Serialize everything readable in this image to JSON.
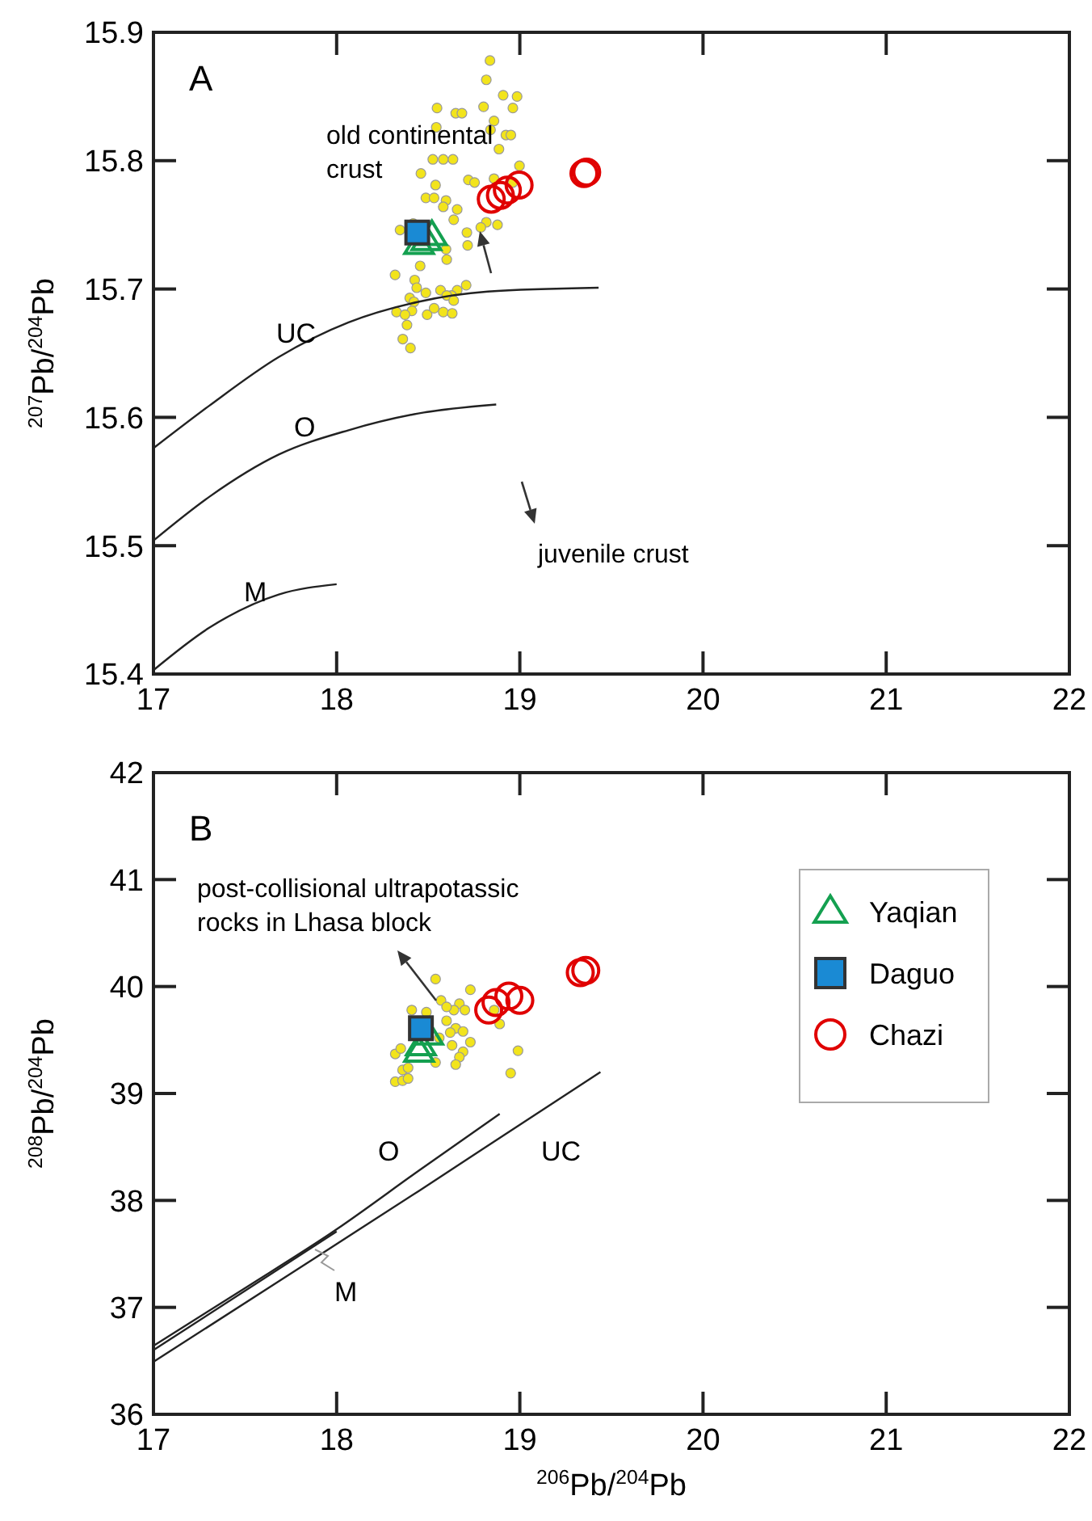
{
  "chart_data": [
    {
      "type": "scatter",
      "ylabel": "$^{207}$Pb/$^{204}$Pb",
      "xlim": [
        17,
        22
      ],
      "xticks": [
        17,
        18,
        19,
        20,
        21,
        22
      ],
      "ylim": [
        15.4,
        15.9
      ],
      "yticks": [
        15.4,
        15.5,
        15.6,
        15.7,
        15.8,
        15.9
      ],
      "grid": false,
      "legend": false,
      "annotations": [
        "A",
        "old continental crust",
        "juvenile crust",
        "UC",
        "O",
        "M"
      ],
      "series": [
        {
          "color": "#f2e41c",
          "marker": "circle",
          "x": [
            18.837,
            18.817,
            18.909,
            18.985,
            18.802,
            18.548,
            18.962,
            18.65,
            18.684,
            18.859,
            18.544,
            18.84,
            18.924,
            18.951,
            18.886,
            18.525,
            18.582,
            18.635,
            18.998,
            18.46,
            18.719,
            18.753,
            18.859,
            18.54,
            18.962,
            18.487,
            18.532,
            18.597,
            18.582,
            18.658,
            18.639,
            18.817,
            18.878,
            18.787,
            18.346,
            18.418,
            18.711,
            18.715,
            18.597,
            18.601,
            18.456,
            18.319,
            18.426,
            18.437,
            18.567,
            18.707,
            18.658,
            18.627,
            18.601,
            18.487,
            18.399,
            18.422,
            18.639,
            18.411,
            18.327,
            18.373,
            18.494,
            18.532,
            18.582,
            18.631,
            18.384,
            18.361,
            18.403
          ],
          "values": [
            15.878,
            15.863,
            15.851,
            15.85,
            15.842,
            15.841,
            15.841,
            15.837,
            15.837,
            15.831,
            15.826,
            15.824,
            15.82,
            15.82,
            15.809,
            15.801,
            15.801,
            15.801,
            15.796,
            15.79,
            15.785,
            15.783,
            15.786,
            15.781,
            15.783,
            15.771,
            15.771,
            15.769,
            15.764,
            15.762,
            15.754,
            15.752,
            15.75,
            15.748,
            15.746,
            15.751,
            15.744,
            15.734,
            15.731,
            15.723,
            15.718,
            15.711,
            15.707,
            15.701,
            15.699,
            15.703,
            15.699,
            15.695,
            15.695,
            15.697,
            15.693,
            15.69,
            15.691,
            15.683,
            15.682,
            15.68,
            15.68,
            15.685,
            15.682,
            15.681,
            15.672,
            15.661,
            15.654
          ]
        },
        {
          "color": "#14a050",
          "marker": "triangle",
          "x": [
            18.45,
            18.49,
            18.52
          ],
          "values": [
            15.735,
            15.738,
            15.742
          ]
        },
        {
          "color": "#1a8ad4",
          "marker": "square",
          "x": [
            18.44
          ],
          "values": [
            15.744
          ]
        },
        {
          "color": "#e00000",
          "marker": "circle",
          "x": [
            18.844,
            18.894,
            18.932,
            18.996,
            19.35,
            19.365
          ],
          "values": [
            15.77,
            15.773,
            15.777,
            15.781,
            15.79,
            15.791
          ]
        },
        {
          "type": "line",
          "color": "#222222",
          "marker": "none",
          "x": [
            17,
            17.304,
            17.684,
            18.065,
            18.445,
            18.825,
            19.43
          ],
          "values": [
            15.576,
            15.609,
            15.647,
            15.674,
            15.69,
            15.698,
            15.701
          ]
        },
        {
          "type": "line",
          "color": "#222222",
          "marker": "none",
          "x": [
            17,
            17.304,
            17.684,
            18.065,
            18.445,
            18.871
          ],
          "values": [
            15.504,
            15.538,
            15.571,
            15.59,
            15.603,
            15.61
          ]
        },
        {
          "type": "line",
          "color": "#222222",
          "marker": "none",
          "x": [
            17,
            17.304,
            17.684,
            18
          ],
          "values": [
            15.403,
            15.436,
            15.462,
            15.47
          ]
        }
      ]
    },
    {
      "type": "scatter",
      "xlabel": "$^{206}$Pb/$^{204}$Pb",
      "ylabel": "$^{208}$Pb/$^{204}$Pb",
      "xlim": [
        17,
        22
      ],
      "xticks": [
        17,
        18,
        19,
        20,
        21,
        22
      ],
      "ylim": [
        36,
        42
      ],
      "yticks": [
        36,
        37,
        38,
        39,
        40,
        41,
        42
      ],
      "grid": false,
      "legend": "right",
      "annotations": [
        "B",
        "post-collisional ultrapotassic rocks in Lhasa block",
        "O",
        "UC",
        "M"
      ],
      "series": [
        {
          "color": "#f2e41c",
          "marker": "circle",
          "x": [
            18.54,
            18.57,
            18.73,
            18.67,
            18.7,
            18.64,
            18.6,
            18.65,
            18.62,
            18.69,
            18.56,
            18.73,
            18.63,
            18.69,
            18.67,
            18.54,
            18.65,
            18.32,
            18.35,
            18.36,
            18.39,
            18.32,
            18.36,
            18.39,
            18.41,
            18.49,
            18.89,
            18.99,
            18.95,
            18.86,
            18.6
          ],
          "values": [
            40.07,
            39.87,
            39.97,
            39.84,
            39.78,
            39.78,
            39.68,
            39.61,
            39.57,
            39.58,
            39.52,
            39.48,
            39.45,
            39.39,
            39.34,
            39.29,
            39.27,
            39.37,
            39.42,
            39.22,
            39.24,
            39.11,
            39.12,
            39.14,
            39.78,
            39.76,
            39.65,
            39.4,
            39.19,
            39.78,
            39.81
          ]
        },
        {
          "name": "Yaqian",
          "color": "#14a050",
          "marker": "triangle",
          "x": [
            18.5,
            18.46,
            18.45
          ],
          "values": [
            39.55,
            39.45,
            39.39
          ]
        },
        {
          "name": "Daguo",
          "color": "#1a8ad4",
          "marker": "square",
          "x": [
            18.46
          ],
          "values": [
            39.61
          ]
        },
        {
          "name": "Chazi",
          "color": "#e00000",
          "marker": "circle",
          "x": [
            18.83,
            18.87,
            18.94,
            19,
            19.33,
            19.36
          ],
          "values": [
            39.78,
            39.85,
            39.91,
            39.87,
            40.13,
            40.15
          ]
        },
        {
          "type": "line",
          "color": "#222222",
          "marker": "none",
          "x": [
            17,
            17.49,
            18,
            18.45,
            18.89
          ],
          "values": [
            36.64,
            37.17,
            37.73,
            38.28,
            38.81
          ]
        },
        {
          "type": "line",
          "color": "#222222",
          "marker": "none",
          "x": [
            17,
            18
          ],
          "values": [
            36.6,
            37.71
          ]
        },
        {
          "type": "line",
          "color": "#222222",
          "marker": "none",
          "x": [
            17,
            17.68,
            18.45,
            19.02,
            19.44
          ],
          "values": [
            36.49,
            37.24,
            38.09,
            38.73,
            39.2
          ]
        }
      ]
    }
  ]
}
